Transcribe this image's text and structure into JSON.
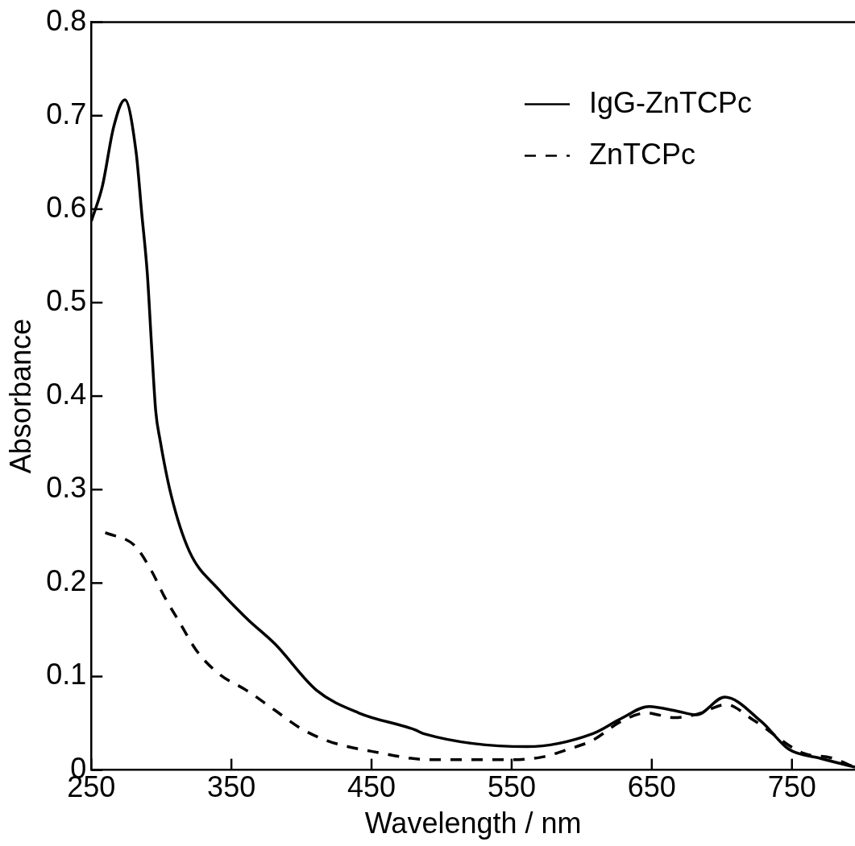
{
  "chart_data": {
    "type": "line",
    "xlabel": "Wavelength / nm",
    "ylabel": "Absorbance",
    "xlim": [
      250,
      795
    ],
    "xticks": [
      250,
      350,
      450,
      550,
      650,
      750
    ],
    "ylim": [
      0,
      0.8
    ],
    "yticks": [
      0,
      0.1,
      0.2,
      0.3,
      0.4,
      0.5,
      0.6,
      0.7,
      0.8
    ],
    "grid": false,
    "legend": "top right",
    "marker": "none",
    "series": [
      {
        "name": "IgG-ZnTCPc",
        "color": "#000000",
        "line_style": "solid",
        "x": [
          250,
          258,
          266,
          274,
          282,
          286,
          290,
          293,
          296,
          299,
          307,
          320,
          341,
          361,
          381,
          411,
          441,
          481,
          487,
          561,
          608,
          628,
          648,
          668,
          682,
          702,
          728,
          748,
          769,
          795
        ],
        "values": [
          0.587,
          0.625,
          0.688,
          0.717,
          0.661,
          0.596,
          0.531,
          0.455,
          0.384,
          0.354,
          0.294,
          0.234,
          0.193,
          0.162,
          0.135,
          0.085,
          0.061,
          0.043,
          0.039,
          0.025,
          0.039,
          0.055,
          0.068,
          0.063,
          0.059,
          0.078,
          0.052,
          0.022,
          0.013,
          0.003
        ]
      },
      {
        "name": "ZnTCPc",
        "color": "#000000",
        "line_style": "dashed",
        "x": [
          260,
          281,
          293,
          302,
          313,
          325,
          341,
          361,
          381,
          399,
          419,
          450,
          493,
          550,
          572,
          590,
          608,
          628,
          646,
          666,
          683,
          703,
          722,
          758,
          778,
          795
        ],
        "values": [
          0.254,
          0.24,
          0.213,
          0.186,
          0.158,
          0.128,
          0.103,
          0.085,
          0.064,
          0.045,
          0.031,
          0.02,
          0.011,
          0.011,
          0.014,
          0.022,
          0.032,
          0.052,
          0.061,
          0.056,
          0.06,
          0.07,
          0.054,
          0.018,
          0.013,
          0.003
        ]
      }
    ]
  }
}
